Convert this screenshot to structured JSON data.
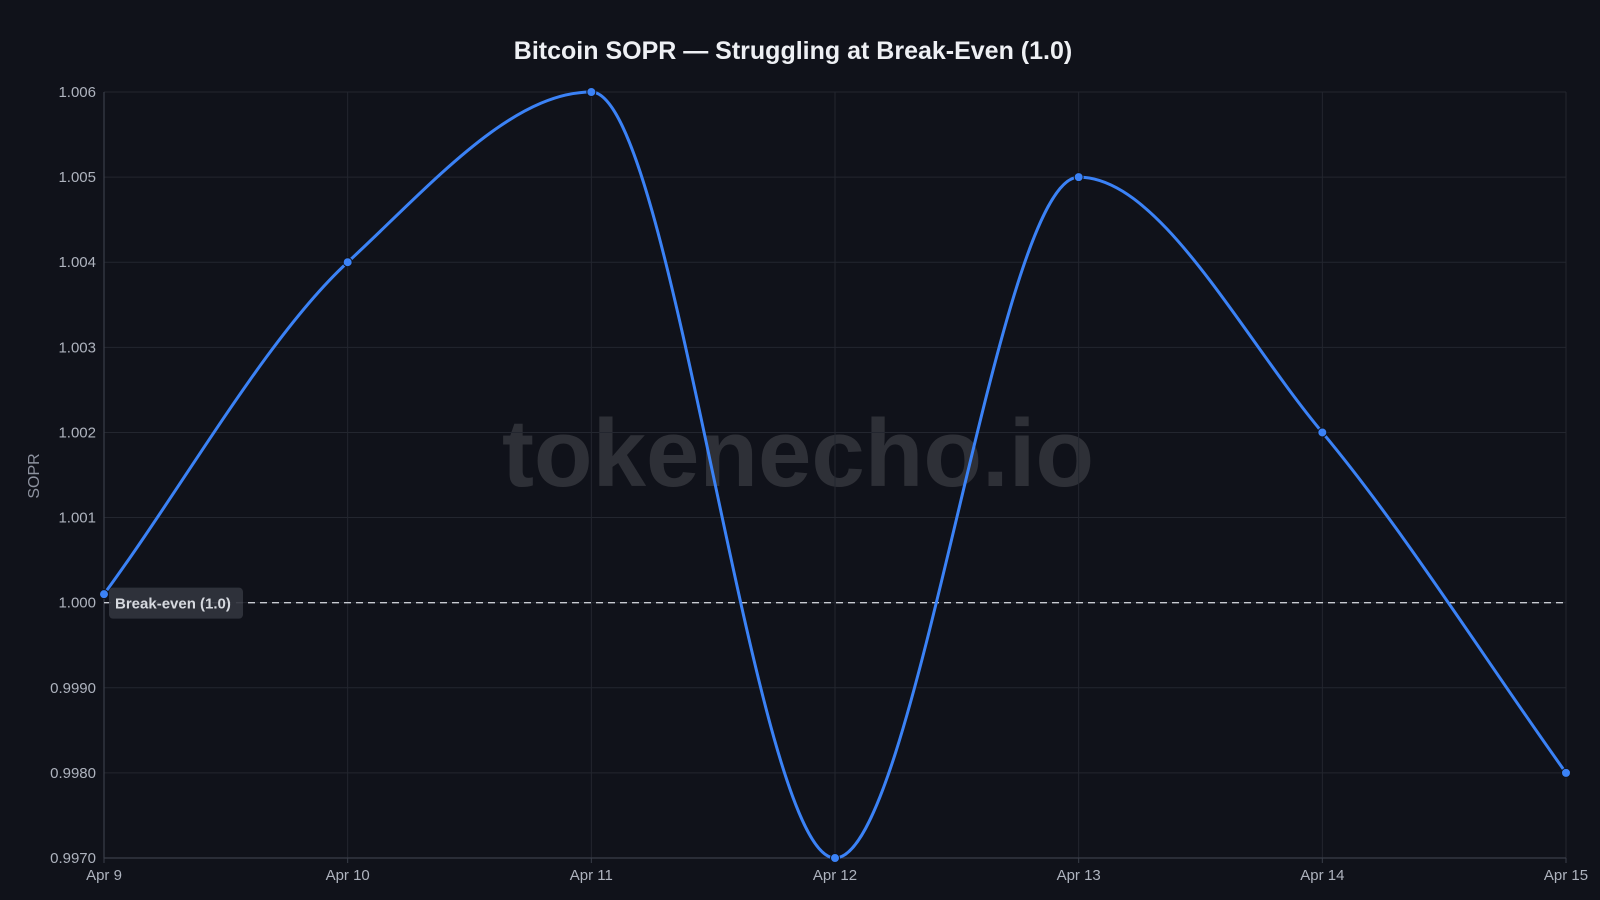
{
  "chart_data": {
    "type": "line",
    "title": "Bitcoin SOPR — Struggling at Break-Even (1.0)",
    "xlabel": "",
    "ylabel": "SOPR",
    "categories": [
      "Apr 9",
      "Apr 10",
      "Apr 11",
      "Apr 12",
      "Apr 13",
      "Apr 14",
      "Apr 15"
    ],
    "series": [
      {
        "values": [
          1.0001,
          1.004,
          1.006,
          0.997,
          1.005,
          1.002,
          0.998
        ],
        "color": "#3b82f6"
      }
    ],
    "ylim": [
      0.997,
      1.006
    ],
    "yticks": [
      0.997,
      0.998,
      0.999,
      1.0,
      1.001,
      1.002,
      1.003,
      1.004,
      1.005,
      1.006
    ],
    "ytick_labels": [
      "0.9970",
      "0.9980",
      "0.9990",
      "1.000",
      "1.001",
      "1.002",
      "1.003",
      "1.004",
      "1.005",
      "1.006"
    ],
    "reference_line": {
      "value": 1.0,
      "label": "Break-even (1.0)",
      "style": "dashed",
      "color": "#c8cbd2"
    },
    "grid": true,
    "line_shape": "smooth",
    "watermark": "tokenecho.io",
    "colors": {
      "background": "#10121a",
      "grid": "#23262f",
      "axis": "#3a3e49",
      "line": "#3b82f6"
    }
  }
}
